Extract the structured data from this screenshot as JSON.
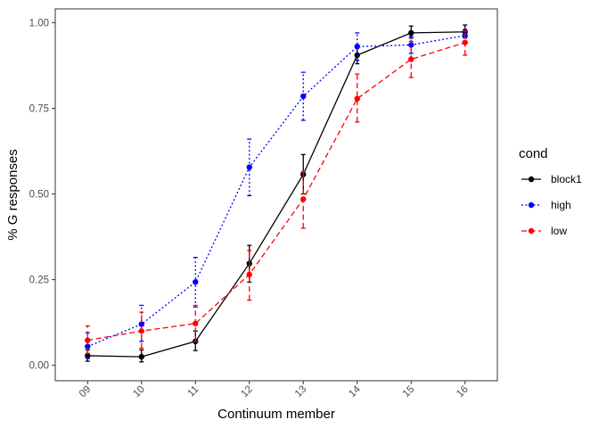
{
  "chart_data": {
    "type": "line",
    "xlabel": "Continuum member",
    "ylabel": "% G responses",
    "categories": [
      "09",
      "10",
      "11",
      "12",
      "13",
      "14",
      "15",
      "16"
    ],
    "ylim": [
      -0.045,
      1.04
    ],
    "yticks": [
      0.0,
      0.25,
      0.5,
      0.75,
      1.0
    ],
    "ytick_labels": [
      "0.00",
      "0.25",
      "0.50",
      "0.75",
      "1.00"
    ],
    "grid": false,
    "legend": {
      "title": "cond",
      "placement": "right"
    },
    "series": [
      {
        "name": "block1",
        "color": "#000000",
        "dash": "solid",
        "values": [
          0.028,
          0.025,
          0.07,
          0.297,
          0.557,
          0.905,
          0.97,
          0.973
        ],
        "err_lo": [
          0.012,
          0.01,
          0.043,
          0.243,
          0.5,
          0.88,
          0.955,
          0.955
        ],
        "err_hi": [
          0.045,
          0.045,
          0.1,
          0.35,
          0.615,
          0.935,
          0.99,
          0.993
        ]
      },
      {
        "name": "high",
        "color": "#0000ff",
        "dash": "dotted",
        "values": [
          0.055,
          0.12,
          0.243,
          0.578,
          0.785,
          0.93,
          0.935,
          0.962
        ],
        "err_lo": [
          0.02,
          0.07,
          0.17,
          0.495,
          0.715,
          0.89,
          0.91,
          0.945
        ],
        "err_hi": [
          0.095,
          0.175,
          0.315,
          0.66,
          0.855,
          0.97,
          0.96,
          0.98
        ]
      },
      {
        "name": "low",
        "color": "#ff0000",
        "dash": "dashed",
        "values": [
          0.073,
          0.1,
          0.122,
          0.265,
          0.485,
          0.778,
          0.893,
          0.942
        ],
        "err_lo": [
          0.035,
          0.05,
          0.07,
          0.19,
          0.4,
          0.71,
          0.84,
          0.905
        ],
        "err_hi": [
          0.115,
          0.155,
          0.175,
          0.335,
          0.565,
          0.85,
          0.945,
          0.975
        ]
      }
    ]
  }
}
